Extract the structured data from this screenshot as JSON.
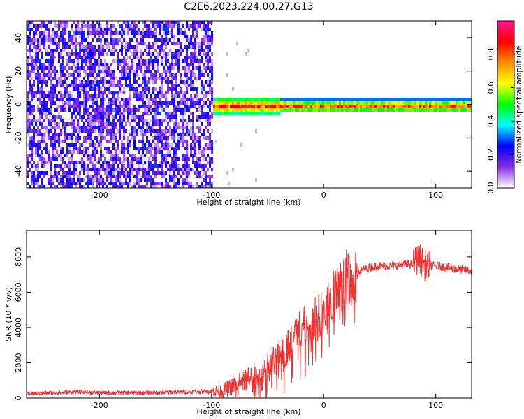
{
  "title": "C2E6.2023.224.00.27.G13",
  "chart_data": [
    {
      "type": "heatmap",
      "title": "",
      "xlabel": "Height of straight line (km)",
      "ylabel": "Frequency (Hz)",
      "xlim": [
        -265,
        132
      ],
      "ylim": [
        -50,
        50
      ],
      "xticks": [
        -200,
        -100,
        0,
        100
      ],
      "yticks": [
        -40,
        -20,
        0,
        20,
        40
      ],
      "grid": false,
      "colorbar": {
        "label": "Normalized spectral amplitude",
        "range": [
          0,
          1
        ],
        "ticks": [
          0.0,
          0.2,
          0.4,
          0.6,
          0.8
        ],
        "tick_labels": [
          "0.0",
          "0.2",
          "0.4",
          "0.6",
          "0.8"
        ],
        "colors": [
          "#ffffff",
          "#8a2be2",
          "#0000ff",
          "#00ffff",
          "#00ff00",
          "#ffff00",
          "#ff8c00",
          "#ff0000",
          "#ff1493"
        ]
      },
      "regions": [
        {
          "description": "broadband noise",
          "x": [
            -265,
            -100
          ],
          "freq_range": [
            -50,
            50
          ],
          "amplitude": 0.15
        },
        {
          "description": "carrier line",
          "x": [
            -100,
            132
          ],
          "freq_center": 0,
          "amplitude_range": [
            0.3,
            0.95
          ]
        }
      ]
    },
    {
      "type": "line",
      "title": "",
      "xlabel": "Height of straight line (km)",
      "ylabel": "SNR (10 * v/v)",
      "xlim": [
        -265,
        132
      ],
      "ylim": [
        0,
        9500
      ],
      "xticks": [
        -200,
        -100,
        0,
        100
      ],
      "yticks": [
        0,
        2000,
        4000,
        6000,
        8000
      ],
      "grid": false,
      "series": [
        {
          "color": "#ee3333",
          "x": [
            -265,
            -240,
            -220,
            -200,
            -180,
            -160,
            -140,
            -120,
            -100,
            -90,
            -80,
            -70,
            -60,
            -50,
            -40,
            -30,
            -20,
            -10,
            0,
            10,
            20,
            30,
            40,
            50,
            60,
            70,
            80,
            85,
            90,
            100,
            110,
            120,
            132
          ],
          "y": [
            250,
            300,
            350,
            300,
            300,
            300,
            320,
            350,
            380,
            400,
            700,
            1000,
            1400,
            1800,
            2300,
            3000,
            3800,
            4300,
            4800,
            5900,
            6700,
            7100,
            7400,
            7500,
            7500,
            7550,
            7600,
            8000,
            7500,
            7500,
            7400,
            7300,
            7200
          ]
        }
      ]
    }
  ]
}
